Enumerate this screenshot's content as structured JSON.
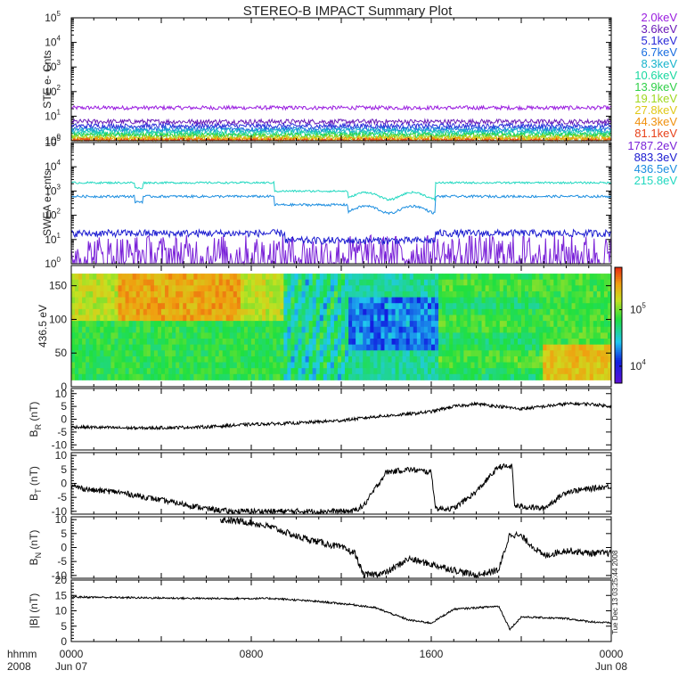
{
  "chart_data": {
    "type": "line",
    "title": "STEREO-B IMPACT Summary Plot",
    "time_axis": {
      "corner_labels": [
        "hhmm",
        "2008"
      ],
      "ticks": [
        {
          "t": 0,
          "line1": "0000",
          "line2": "Jun 07"
        },
        {
          "t": 8,
          "line1": "0800",
          "line2": ""
        },
        {
          "t": 16,
          "line1": "1600",
          "line2": ""
        },
        {
          "t": 24,
          "line1": "0000",
          "line2": "Jun 08"
        }
      ]
    },
    "side_text": "Tue Dec 13 03:25:44 2008",
    "panels": [
      {
        "id": "ste",
        "kind": "log_lines",
        "ylabel": "STE e- Cnts",
        "ylim_exp": [
          0,
          5
        ],
        "series": [
          {
            "name": "2.0keV",
            "color": "#9a1de0",
            "level": 22,
            "noise": 0.08
          },
          {
            "name": "3.6keV",
            "color": "#6a1ab8",
            "level": 6,
            "noise": 0.1
          },
          {
            "name": "5.1keV",
            "color": "#2a2ad8",
            "level": 4,
            "noise": 0.1
          },
          {
            "name": "6.7keV",
            "color": "#1a6ee0",
            "level": 3,
            "noise": 0.1
          },
          {
            "name": "8.3keV",
            "color": "#18b4cc",
            "level": 2.5,
            "noise": 0.1
          },
          {
            "name": "10.6keV",
            "color": "#1ad8a0",
            "level": 2.0,
            "noise": 0.1
          },
          {
            "name": "13.9keV",
            "color": "#30d048",
            "level": 1.7,
            "noise": 0.1
          },
          {
            "name": "19.1keV",
            "color": "#a0d820",
            "level": 1.4,
            "noise": 0.1
          },
          {
            "name": "27.8keV",
            "color": "#e0c818",
            "level": 1.2,
            "noise": 0.1
          },
          {
            "name": "44.3keV",
            "color": "#f0900e",
            "level": 1.1,
            "noise": 0.1
          },
          {
            "name": "81.1keV",
            "color": "#e8421a",
            "level": 1.0,
            "noise": 0.1
          }
        ]
      },
      {
        "id": "swea",
        "kind": "log_lines",
        "ylabel": "SWEA e- cnts",
        "ylim_exp": [
          0,
          5
        ],
        "series": [
          {
            "name": "1787.2eV",
            "color": "#7a22d8",
            "level": 2,
            "noise": 0.3
          },
          {
            "name": "883.3eV",
            "color": "#1a1ad0",
            "level": 18,
            "noise": 0.15
          },
          {
            "name": "436.5eV",
            "color": "#1c8ee0",
            "level": 600,
            "noise": 0.05
          },
          {
            "name": "215.8eV",
            "color": "#20d8c0",
            "level": 2200,
            "noise": 0.04
          }
        ]
      },
      {
        "id": "pad",
        "kind": "spectrogram",
        "ylabel": "436.5 eV",
        "ylim": [
          0,
          180
        ],
        "yticks": [
          0,
          50,
          100,
          150
        ],
        "colorbar_ticks": [
          {
            "label": "10",
            "exp": "5",
            "value": 100000
          },
          {
            "label": "10",
            "exp": "4",
            "value": 10000
          }
        ]
      },
      {
        "id": "br",
        "kind": "line",
        "ylabel": "B",
        "ysub": "R",
        "yunit": " (nT)",
        "ylim": [
          -12,
          12
        ],
        "yticks": [
          -10,
          -5,
          0,
          5,
          10
        ],
        "keyframes": [
          [
            0,
            -3
          ],
          [
            3,
            -3.5
          ],
          [
            6,
            -3
          ],
          [
            8,
            -2
          ],
          [
            10,
            -1.5
          ],
          [
            12,
            -0.5
          ],
          [
            13.5,
            1
          ],
          [
            15,
            2
          ],
          [
            16,
            3
          ],
          [
            17,
            5
          ],
          [
            18,
            6
          ],
          [
            19,
            5
          ],
          [
            20,
            4
          ],
          [
            21,
            5
          ],
          [
            22,
            6
          ],
          [
            23,
            6
          ],
          [
            24,
            5
          ]
        ],
        "noise": 0.6
      },
      {
        "id": "bt",
        "kind": "line",
        "ylabel": "B",
        "ysub": "T",
        "yunit": " (nT)",
        "ylim": [
          -11,
          11
        ],
        "yticks": [
          -10,
          -5,
          0,
          5,
          10
        ],
        "keyframes": [
          [
            0,
            -1
          ],
          [
            1,
            -2.5
          ],
          [
            2,
            -3
          ],
          [
            4,
            -6
          ],
          [
            6,
            -9
          ],
          [
            7,
            -10
          ],
          [
            9,
            -10
          ],
          [
            11,
            -10
          ],
          [
            12.5,
            -10
          ],
          [
            13,
            -8
          ],
          [
            14,
            4
          ],
          [
            15,
            5
          ],
          [
            16,
            4
          ],
          [
            16.2,
            -9
          ],
          [
            17,
            -9
          ],
          [
            18,
            -3
          ],
          [
            19,
            6
          ],
          [
            19.6,
            6
          ],
          [
            19.7,
            -8
          ],
          [
            21,
            -9
          ],
          [
            22,
            -3
          ],
          [
            23,
            -2
          ],
          [
            24,
            -1
          ]
        ],
        "noise": 1.0
      },
      {
        "id": "bn",
        "kind": "line",
        "ylabel": "B",
        "ysub": "N",
        "yunit": " (nT)",
        "ylim": [
          -11,
          11
        ],
        "yticks": [
          -10,
          -5,
          0,
          5,
          10
        ],
        "keyframes": [
          [
            0,
            null
          ],
          [
            6.5,
            null
          ],
          [
            6.6,
            10
          ],
          [
            8,
            9
          ],
          [
            9,
            7
          ],
          [
            10,
            4
          ],
          [
            11,
            2
          ],
          [
            12,
            0
          ],
          [
            12.6,
            -2
          ],
          [
            13,
            -10
          ],
          [
            14,
            -9
          ],
          [
            15,
            -4
          ],
          [
            16,
            -6
          ],
          [
            17,
            -8
          ],
          [
            18,
            -10
          ],
          [
            19,
            -8
          ],
          [
            19.5,
            5
          ],
          [
            20,
            4
          ],
          [
            21,
            -3
          ],
          [
            22,
            -1
          ],
          [
            23,
            -2
          ],
          [
            24,
            -2
          ]
        ],
        "noise": 1.2
      },
      {
        "id": "bmag",
        "kind": "line",
        "ylabel": "|B| (nT)",
        "ylim": [
          0,
          20
        ],
        "yticks": [
          0,
          5,
          10,
          15,
          20
        ],
        "keyframes": [
          [
            0,
            14.5
          ],
          [
            6,
            14
          ],
          [
            9,
            14
          ],
          [
            11,
            13
          ],
          [
            12.5,
            12
          ],
          [
            13.5,
            11
          ],
          [
            15,
            7
          ],
          [
            16,
            6
          ],
          [
            17,
            10.5
          ],
          [
            19,
            11.5
          ],
          [
            19.5,
            4
          ],
          [
            20,
            8
          ],
          [
            22,
            7.5
          ],
          [
            23,
            6.5
          ],
          [
            24,
            6
          ]
        ],
        "noise": 0.3
      }
    ]
  }
}
